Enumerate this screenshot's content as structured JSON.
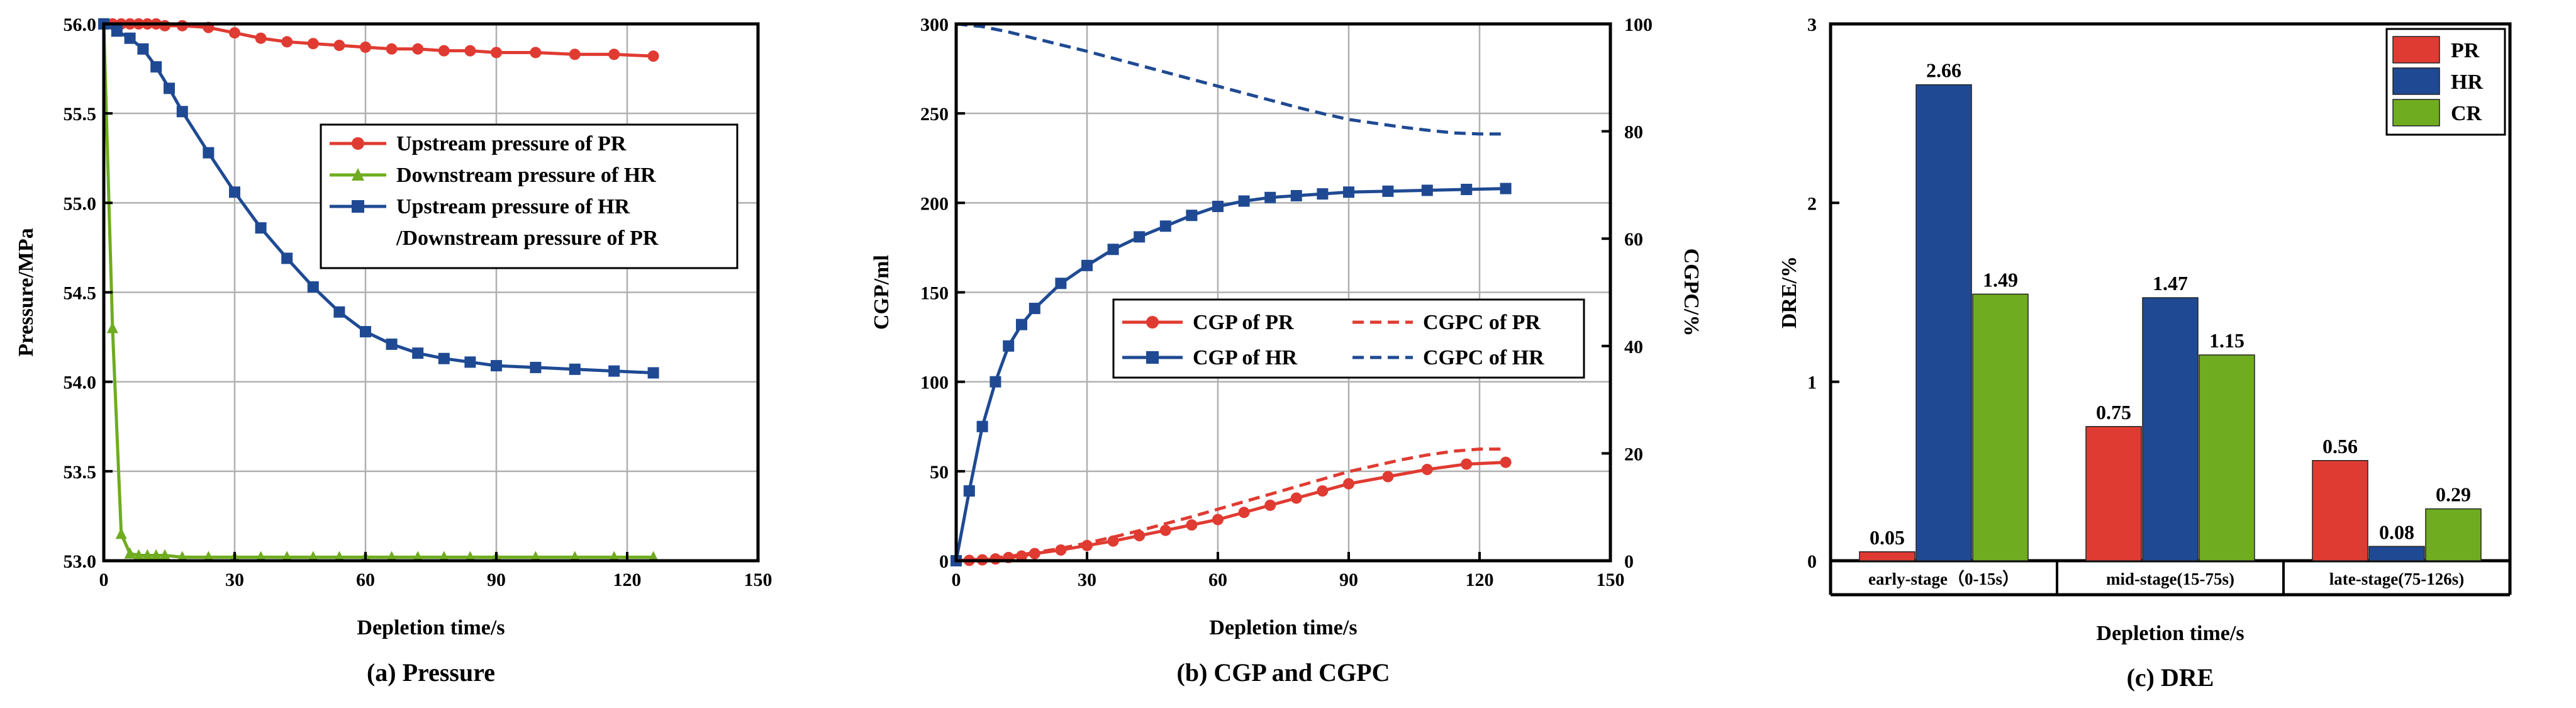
{
  "colors": {
    "pr": "#e03b32",
    "hr": "#1f4a93",
    "cr": "#6fac1f",
    "grid": "#b0b0b0",
    "axis": "#000000"
  },
  "chart_data": [
    {
      "type": "line",
      "caption": "(a) Pressure",
      "xlabel": "Depletion time/s",
      "ylabel": "Pressure/MPa",
      "xlim": [
        0,
        150
      ],
      "ylim": [
        53.0,
        56.0
      ],
      "xticks": [
        "0",
        "30",
        "60",
        "90",
        "120",
        "150"
      ],
      "yticks": [
        "53.0",
        "53.5",
        "54.0",
        "54.5",
        "55.0",
        "55.5",
        "56.0"
      ],
      "legend_position": "top-right",
      "series": [
        {
          "name": "Upstream pressure of PR",
          "color": "#e03b32",
          "marker": "circle",
          "x": [
            0,
            2,
            4,
            6,
            8,
            10,
            12,
            14,
            18,
            24,
            30,
            36,
            42,
            48,
            54,
            60,
            66,
            72,
            78,
            84,
            90,
            99,
            108,
            117,
            126
          ],
          "y": [
            56.0,
            56.0,
            56.0,
            56.0,
            56.0,
            56.0,
            56.0,
            55.99,
            55.99,
            55.98,
            55.95,
            55.92,
            55.9,
            55.89,
            55.88,
            55.87,
            55.86,
            55.86,
            55.85,
            55.85,
            55.84,
            55.84,
            55.83,
            55.83,
            55.82
          ]
        },
        {
          "name": "Downstream pressure of HR",
          "color": "#6fac1f",
          "marker": "triangle",
          "x": [
            0,
            2,
            4,
            6,
            8,
            10,
            12,
            14,
            18,
            24,
            30,
            36,
            42,
            48,
            54,
            60,
            66,
            72,
            78,
            84,
            90,
            99,
            108,
            117,
            126
          ],
          "y": [
            56.0,
            54.3,
            53.15,
            53.04,
            53.03,
            53.03,
            53.03,
            53.03,
            53.02,
            53.02,
            53.02,
            53.02,
            53.02,
            53.02,
            53.02,
            53.02,
            53.02,
            53.02,
            53.02,
            53.02,
            53.02,
            53.02,
            53.02,
            53.02,
            53.02
          ]
        },
        {
          "name": "Upstream pressure of HR\n/Downstream pressure of PR",
          "color": "#1f4a93",
          "marker": "square",
          "x": [
            0,
            3,
            6,
            9,
            12,
            15,
            18,
            24,
            30,
            36,
            42,
            48,
            54,
            60,
            66,
            72,
            78,
            84,
            90,
            99,
            108,
            117,
            126
          ],
          "y": [
            56.0,
            55.96,
            55.92,
            55.86,
            55.76,
            55.64,
            55.51,
            55.28,
            55.06,
            54.86,
            54.69,
            54.53,
            54.39,
            54.28,
            54.21,
            54.16,
            54.13,
            54.11,
            54.09,
            54.08,
            54.07,
            54.06,
            54.05
          ]
        }
      ]
    },
    {
      "type": "line",
      "caption": "(b) CGP and CGPC",
      "xlabel": "Depletion time/s",
      "ylabel": "CGP/ml",
      "y2label": "CGPC/%",
      "xlim": [
        0,
        150
      ],
      "ylim": [
        0,
        300
      ],
      "y2lim": [
        0,
        100
      ],
      "xticks": [
        "0",
        "30",
        "60",
        "90",
        "120",
        "150"
      ],
      "yticks": [
        "0",
        "50",
        "100",
        "150",
        "200",
        "250",
        "300"
      ],
      "y2ticks": [
        "0",
        "20",
        "40",
        "60",
        "80",
        "100"
      ],
      "legend_position": "middle-right",
      "series": [
        {
          "name": "CGP of PR",
          "color": "#e03b32",
          "marker": "circle",
          "axis": "left",
          "dash": false,
          "x": [
            0,
            3,
            6,
            9,
            12,
            15,
            18,
            24,
            30,
            36,
            42,
            48,
            54,
            60,
            66,
            72,
            78,
            84,
            90,
            99,
            108,
            117,
            126
          ],
          "y": [
            0,
            0.2,
            0.5,
            1,
            1.8,
            2.6,
            4,
            6,
            8.5,
            11,
            14,
            17,
            20,
            23,
            27,
            31,
            35,
            39,
            43,
            47,
            51,
            54,
            55
          ]
        },
        {
          "name": "CGP of HR",
          "color": "#1f4a93",
          "marker": "square",
          "axis": "left",
          "dash": false,
          "x": [
            0,
            3,
            6,
            9,
            12,
            15,
            18,
            24,
            30,
            36,
            42,
            48,
            54,
            60,
            66,
            72,
            78,
            84,
            90,
            99,
            108,
            117,
            126
          ],
          "y": [
            0,
            39,
            75,
            100,
            120,
            132,
            141,
            155,
            165,
            174,
            181,
            187,
            193,
            198,
            201,
            203,
            204,
            205,
            206,
            206.5,
            207,
            207.5,
            208
          ]
        },
        {
          "name": "CGPC of PR",
          "color": "#e03b32",
          "marker": "none",
          "axis": "right",
          "dash": true,
          "x": [
            0,
            6,
            12,
            18,
            24,
            30,
            36,
            42,
            48,
            54,
            60,
            66,
            72,
            78,
            84,
            90,
            96,
            102,
            108,
            114,
            120,
            126
          ],
          "y": [
            0,
            0.3,
            0.8,
            1.5,
            2.3,
            3.3,
            4.4,
            5.6,
            6.9,
            8.2,
            9.6,
            11,
            12.4,
            13.8,
            15.2,
            16.6,
            17.7,
            18.8,
            19.7,
            20.4,
            20.8,
            20.8
          ]
        },
        {
          "name": "CGPC of HR",
          "color": "#1f4a93",
          "marker": "none",
          "axis": "right",
          "dash": true,
          "x": [
            0,
            6,
            12,
            18,
            24,
            30,
            36,
            42,
            48,
            54,
            60,
            66,
            72,
            78,
            84,
            90,
            96,
            102,
            108,
            114,
            120,
            126
          ],
          "y": [
            100,
            99.5,
            98.5,
            97.3,
            96.1,
            94.9,
            93.6,
            92.3,
            91,
            89.7,
            88.4,
            87.1,
            85.8,
            84.5,
            83.3,
            82.2,
            81.5,
            80.8,
            80.2,
            79.7,
            79.5,
            79.5
          ]
        }
      ]
    },
    {
      "type": "bar",
      "caption": "(c) DRE",
      "xlabel": "Depletion time/s",
      "ylabel": "DRE/%",
      "ylim": [
        0,
        3
      ],
      "yticks": [
        "0",
        "1",
        "2",
        "3"
      ],
      "categories": [
        "early-stage（0-15s）",
        "mid-stage(15-75s)",
        "late-stage(75-126s)"
      ],
      "legend_position": "top-right",
      "series": [
        {
          "name": "PR",
          "color": "#e03b32",
          "values": [
            0.05,
            0.75,
            0.56
          ],
          "labels": [
            "0.05",
            "0.75",
            "0.56"
          ]
        },
        {
          "name": "HR",
          "color": "#1f4a93",
          "values": [
            2.66,
            1.47,
            0.08
          ],
          "labels": [
            "2.66",
            "1.47",
            "0.08"
          ]
        },
        {
          "name": "CR",
          "color": "#6fac1f",
          "values": [
            1.49,
            1.15,
            0.29
          ],
          "labels": [
            "1.49",
            "1.15",
            "0.29"
          ]
        }
      ]
    }
  ]
}
